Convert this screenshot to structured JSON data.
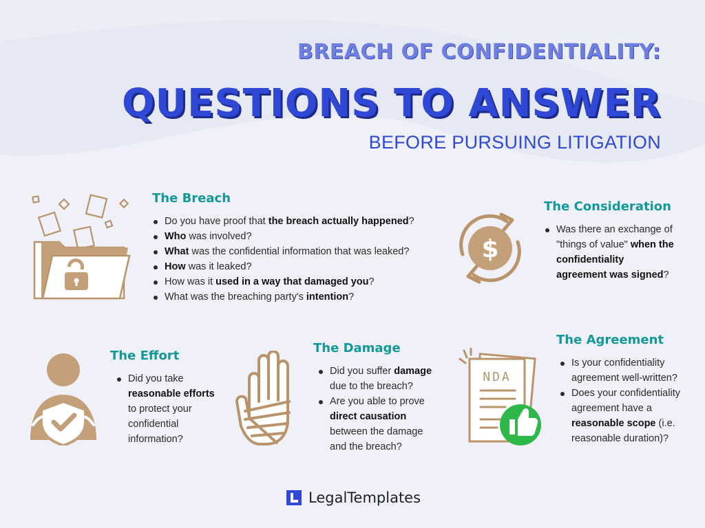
{
  "header": {
    "kicker": "BREACH OF CONFIDENTIALITY:",
    "headline": "QUESTIONS TO ANSWER",
    "subline": "BEFORE PURSUING LITIGATION"
  },
  "sections": {
    "breach": {
      "title": "The Breach",
      "items": [
        [
          {
            "t": "Do you have proof that "
          },
          {
            "t": "the breach actually happened",
            "b": true
          },
          {
            "t": "?"
          }
        ],
        [
          {
            "t": "Who",
            "b": true
          },
          {
            "t": " was involved?"
          }
        ],
        [
          {
            "t": "What",
            "b": true
          },
          {
            "t": " was the confidential information that was leaked?"
          }
        ],
        [
          {
            "t": "How",
            "b": true
          },
          {
            "t": " was it leaked?"
          }
        ],
        [
          {
            "t": "How was it "
          },
          {
            "t": "used in a way that damaged you",
            "b": true
          },
          {
            "t": "?"
          }
        ],
        [
          {
            "t": "What was the breaching party's "
          },
          {
            "t": "intention",
            "b": true
          },
          {
            "t": "?"
          }
        ]
      ]
    },
    "consideration": {
      "title": "The Consideration",
      "items": [
        [
          {
            "t": "Was there an exchange of \"things of value\" "
          },
          {
            "t": "when the confidentiality agreement was signed",
            "b": true
          },
          {
            "t": "?"
          }
        ]
      ]
    },
    "effort": {
      "title": "The Effort",
      "items": [
        [
          {
            "t": "Did you take "
          },
          {
            "t": "reasonable efforts",
            "b": true
          },
          {
            "t": " to protect your confidential information?"
          }
        ]
      ]
    },
    "damage": {
      "title": "The Damage",
      "items": [
        [
          {
            "t": "Did you suffer "
          },
          {
            "t": "damage",
            "b": true
          },
          {
            "t": " due to the breach?"
          }
        ],
        [
          {
            "t": "Are you able to prove "
          },
          {
            "t": "direct causation",
            "b": true
          },
          {
            "t": " between the damage and the breach?"
          }
        ]
      ]
    },
    "agreement": {
      "title": "The Agreement",
      "items": [
        [
          {
            "t": "Is your confidentiality agreement well-written?"
          }
        ],
        [
          {
            "t": "Does your confidentiality agreement have a "
          },
          {
            "t": "reasonable scope",
            "b": true
          },
          {
            "t": " (i.e. reasonable duration)?"
          }
        ]
      ]
    }
  },
  "icons": {
    "breach": "folder-unlocked-icon",
    "consideration": "dollar-cycle-icon",
    "effort": "person-shield-icon",
    "damage": "bandaged-hand-icon",
    "agreement": "nda-thumbs-up-icon"
  },
  "labels": {
    "dollar": "$",
    "nda": "NDA"
  },
  "brand": {
    "name": "LegalTemplates"
  },
  "colors": {
    "background": "#f0f1f8",
    "headline": "#2f49d6",
    "kicker": "#6f7fe0",
    "section_title": "#13989a",
    "icon": "#b9936a",
    "thumbs_badge": "#2fb84a"
  }
}
